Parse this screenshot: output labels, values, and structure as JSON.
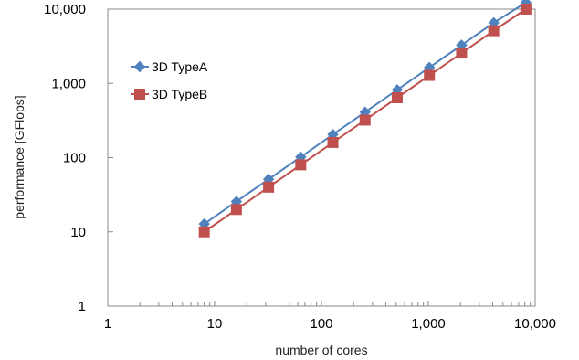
{
  "chart_data": {
    "type": "line",
    "xscale": "log",
    "yscale": "log",
    "xlabel": "number of cores",
    "ylabel": "performance [GFlops]",
    "xlim": [
      1,
      10000
    ],
    "ylim": [
      1,
      10000
    ],
    "xticks": [
      1,
      10,
      100,
      1000,
      10000
    ],
    "xtick_labels": [
      "1",
      "10",
      "100",
      "1,000",
      "10,000"
    ],
    "yticks": [
      1,
      10,
      100,
      1000,
      10000
    ],
    "ytick_labels": [
      "1",
      "10",
      "100",
      "1,000",
      "10,000"
    ],
    "grid": false,
    "legend_position": "top-left",
    "x": [
      8,
      16,
      32,
      64,
      128,
      256,
      512,
      1024,
      2048,
      4096,
      8192
    ],
    "series": [
      {
        "name": "3D TypeA",
        "marker": "diamond",
        "color": "#4F81BD",
        "values": [
          12.8,
          25.6,
          51.2,
          102,
          205,
          410,
          819,
          1638,
          3277,
          6554,
          12288
        ]
      },
      {
        "name": "3D TypeB",
        "marker": "square",
        "color": "#C0504D",
        "values": [
          10,
          20,
          40,
          80,
          160,
          320,
          640,
          1280,
          2560,
          5120,
          10000
        ]
      }
    ]
  }
}
